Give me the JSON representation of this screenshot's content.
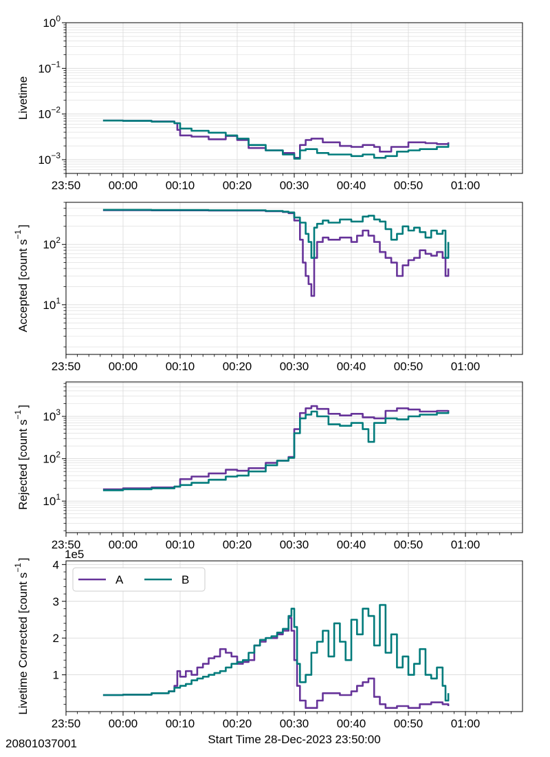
{
  "figure_id": "20801037001",
  "x_axis_label": "Start Time 28-Dec-2023 23:50:00",
  "colors": {
    "A": "#663399",
    "B": "#007b7b",
    "grid": "#d9d9d9"
  },
  "legend": {
    "entries": [
      "A",
      "B"
    ],
    "placement": "upper-left",
    "panel": 3
  },
  "chart_data": [
    {
      "type": "line",
      "ylabel": "Livetime",
      "yscale": "log",
      "ylim": [
        0.0005,
        1
      ],
      "major_ticks": [
        {
          "v": 0.001,
          "base": "10",
          "exp": "−3"
        },
        {
          "v": 0.01,
          "base": "10",
          "exp": "−2"
        },
        {
          "v": 0.1,
          "base": "10",
          "exp": "−1"
        },
        {
          "v": 1,
          "base": "10",
          "exp": "0"
        }
      ],
      "xlim": [
        "23:50",
        "01:00"
      ],
      "xticks": [
        "23:50",
        "00:00",
        "00:10",
        "00:20",
        "00:30",
        "00:40",
        "00:50",
        "01:00"
      ],
      "grid": true,
      "series": [
        {
          "name": "A",
          "x": [
            -3.5,
            0,
            5,
            9,
            9.5,
            10,
            12,
            15,
            18,
            20,
            22,
            25,
            28,
            30,
            31,
            32,
            33,
            35,
            38,
            40,
            42,
            44,
            45,
            47,
            50,
            53,
            55,
            57
          ],
          "y": [
            0.0072,
            0.0071,
            0.0069,
            0.0063,
            0.0045,
            0.0034,
            0.0032,
            0.0028,
            0.0033,
            0.0027,
            0.0018,
            0.0016,
            0.0014,
            0.0011,
            0.0021,
            0.0027,
            0.0029,
            0.0024,
            0.002,
            0.0019,
            0.0021,
            0.0019,
            0.0015,
            0.0019,
            0.0024,
            0.0023,
            0.0022,
            0.0024
          ]
        },
        {
          "name": "B",
          "x": [
            -3.5,
            0,
            5,
            9,
            10,
            12,
            15,
            18,
            20,
            22,
            25,
            28,
            30,
            31,
            32,
            34,
            36,
            38,
            40,
            42,
            44,
            46,
            48,
            50,
            52,
            55,
            57
          ],
          "y": [
            0.0072,
            0.0071,
            0.0068,
            0.0063,
            0.0048,
            0.0043,
            0.0039,
            0.0034,
            0.0029,
            0.0021,
            0.0016,
            0.0013,
            0.00105,
            0.0016,
            0.0017,
            0.0014,
            0.0013,
            0.0013,
            0.0012,
            0.0013,
            0.0011,
            0.0012,
            0.0015,
            0.0016,
            0.0017,
            0.0019,
            0.0022
          ]
        }
      ]
    },
    {
      "type": "line",
      "ylabel": "Accepted [count s",
      "ylabel_sup": "−1",
      "ylabel_end": "]",
      "yscale": "log",
      "ylim": [
        1.5,
        500
      ],
      "major_ticks": [
        {
          "v": 10,
          "base": "10",
          "exp": "1"
        },
        {
          "v": 100,
          "base": "10",
          "exp": "2"
        }
      ],
      "xlim": [
        "23:50",
        "01:00"
      ],
      "xticks": [
        "23:50",
        "00:00",
        "00:10",
        "00:20",
        "00:30",
        "00:40",
        "00:50",
        "01:00"
      ],
      "grid": true,
      "series": [
        {
          "name": "A",
          "x": [
            -3.5,
            5,
            15,
            25,
            28,
            29,
            30,
            31,
            31.5,
            32,
            32.5,
            33,
            33.5,
            34,
            35,
            36,
            38,
            40,
            41,
            42,
            43,
            44,
            45,
            46,
            47,
            48,
            49,
            50,
            51,
            52,
            53,
            54,
            55,
            56,
            56.5,
            57
          ],
          "y": [
            370,
            368,
            365,
            355,
            345,
            330,
            250,
            120,
            50,
            30,
            22,
            14,
            60,
            110,
            130,
            120,
            130,
            110,
            140,
            170,
            140,
            110,
            75,
            60,
            50,
            30,
            45,
            55,
            60,
            80,
            70,
            65,
            75,
            60,
            30,
            40
          ]
        },
        {
          "name": "B",
          "x": [
            -3.5,
            5,
            15,
            25,
            28,
            29,
            30,
            31,
            32,
            32.5,
            33,
            33.5,
            34,
            35,
            36,
            38,
            40,
            42,
            43,
            44,
            45,
            46,
            47,
            48,
            49,
            50,
            51,
            52,
            53,
            54,
            55,
            56,
            56.5,
            57
          ],
          "y": [
            375,
            372,
            370,
            360,
            350,
            340,
            280,
            230,
            150,
            110,
            60,
            190,
            220,
            250,
            230,
            260,
            240,
            290,
            300,
            260,
            240,
            180,
            120,
            150,
            200,
            170,
            190,
            160,
            130,
            170,
            150,
            170,
            60,
            110
          ]
        }
      ]
    },
    {
      "type": "line",
      "ylabel": "Rejected [count s",
      "ylabel_sup": "−1",
      "ylabel_end": "]",
      "yscale": "log",
      "ylim": [
        1.8,
        6500
      ],
      "major_ticks": [
        {
          "v": 10,
          "base": "10",
          "exp": "1"
        },
        {
          "v": 100,
          "base": "10",
          "exp": "2"
        },
        {
          "v": 1000,
          "base": "10",
          "exp": "3"
        }
      ],
      "xlim": [
        "23:50",
        "01:00"
      ],
      "xticks": [
        "23:50",
        "00:00",
        "00:10",
        "00:20",
        "00:30",
        "00:40",
        "00:50",
        "01:00"
      ],
      "grid": true,
      "series": [
        {
          "name": "A",
          "x": [
            -3.5,
            0,
            5,
            9,
            10,
            12,
            15,
            18,
            20,
            22,
            25,
            27,
            29,
            30,
            31,
            32,
            33,
            34,
            36,
            38,
            40,
            42,
            44,
            46,
            48,
            50,
            52,
            55,
            57
          ],
          "y": [
            19,
            20,
            21,
            22,
            33,
            38,
            45,
            55,
            52,
            60,
            80,
            90,
            110,
            500,
            1200,
            1550,
            1750,
            1500,
            1150,
            1050,
            1150,
            950,
            900,
            1350,
            1550,
            1450,
            1300,
            1350,
            1400
          ]
        },
        {
          "name": "B",
          "x": [
            -3.5,
            0,
            5,
            9,
            10,
            12,
            15,
            18,
            20,
            22,
            25,
            27,
            29,
            30,
            31,
            32,
            33,
            34,
            36,
            38,
            40,
            42,
            43,
            44,
            46,
            48,
            50,
            52,
            55,
            57
          ],
          "y": [
            18,
            19,
            20,
            22,
            24,
            27,
            32,
            38,
            40,
            50,
            70,
            90,
            105,
            400,
            900,
            1100,
            1300,
            1000,
            650,
            600,
            700,
            500,
            250,
            700,
            900,
            850,
            1000,
            1100,
            1200,
            1300
          ]
        }
      ]
    },
    {
      "type": "line",
      "ylabel": "Livetime Corrected [count s",
      "ylabel_sup": "−1",
      "ylabel_end": "]",
      "yscale": "linear",
      "offset_text": "1e5",
      "ylim": [
        0,
        4.1
      ],
      "major_ticks": [
        {
          "v": 1,
          "label": "1"
        },
        {
          "v": 2,
          "label": "2"
        },
        {
          "v": 3,
          "label": "3"
        },
        {
          "v": 4,
          "label": "4"
        }
      ],
      "xlim": [
        "23:50",
        "01:00"
      ],
      "xticks": [
        "23:50",
        "00:00",
        "00:10",
        "00:20",
        "00:30",
        "00:40",
        "00:50",
        "01:00"
      ],
      "grid": true,
      "series": [
        {
          "name": "A",
          "x": [
            -3.5,
            0,
            5,
            8,
            9,
            9.5,
            10,
            11,
            12,
            13,
            14,
            15,
            16,
            17,
            18,
            19,
            20,
            21,
            22,
            23,
            24,
            25,
            26,
            27,
            28,
            29,
            29.5,
            30,
            30.5,
            31,
            32,
            33,
            34,
            35,
            36,
            38,
            40,
            41,
            42,
            43,
            44,
            45,
            46,
            48,
            50,
            52,
            54,
            56,
            57
          ],
          "y": [
            0.45,
            0.46,
            0.5,
            0.55,
            0.7,
            1.1,
            0.95,
            1.1,
            1.0,
            1.2,
            1.3,
            1.45,
            1.5,
            1.7,
            1.6,
            1.5,
            1.3,
            1.35,
            1.4,
            1.8,
            1.9,
            2.0,
            2.0,
            2.1,
            2.2,
            2.55,
            2.2,
            1.4,
            0.7,
            0.3,
            0.1,
            0.1,
            0.3,
            0.5,
            0.5,
            0.45,
            0.55,
            0.7,
            0.8,
            0.9,
            0.4,
            0.2,
            0.1,
            0.15,
            0.1,
            0.2,
            0.25,
            0.2,
            0.15
          ]
        },
        {
          "name": "B",
          "x": [
            -3.5,
            0,
            5,
            8,
            9,
            10,
            11,
            12,
            13,
            14,
            15,
            16,
            17,
            18,
            19,
            20,
            21,
            22,
            23,
            24,
            25,
            26,
            27,
            28,
            29,
            29.5,
            30,
            30.5,
            31,
            32,
            33,
            34,
            35,
            36,
            37,
            38,
            39,
            40,
            41,
            42,
            43,
            44,
            45,
            46,
            47,
            48,
            49,
            50,
            51,
            52,
            53,
            54,
            55,
            56,
            56.5,
            57
          ],
          "y": [
            0.45,
            0.46,
            0.5,
            0.55,
            0.65,
            0.7,
            0.75,
            0.85,
            0.9,
            0.95,
            1.0,
            1.05,
            1.1,
            1.2,
            1.3,
            1.35,
            1.4,
            1.6,
            1.8,
            1.95,
            2.0,
            2.05,
            2.15,
            2.25,
            2.6,
            2.8,
            2.3,
            1.3,
            0.8,
            1.0,
            1.6,
            1.9,
            2.2,
            1.5,
            2.4,
            1.9,
            1.4,
            2.5,
            2.1,
            2.8,
            2.6,
            1.8,
            2.9,
            1.6,
            2.1,
            1.2,
            1.5,
            1.0,
            1.3,
            1.7,
            1.0,
            0.9,
            1.2,
            0.7,
            0.3,
            0.5
          ]
        }
      ]
    }
  ]
}
